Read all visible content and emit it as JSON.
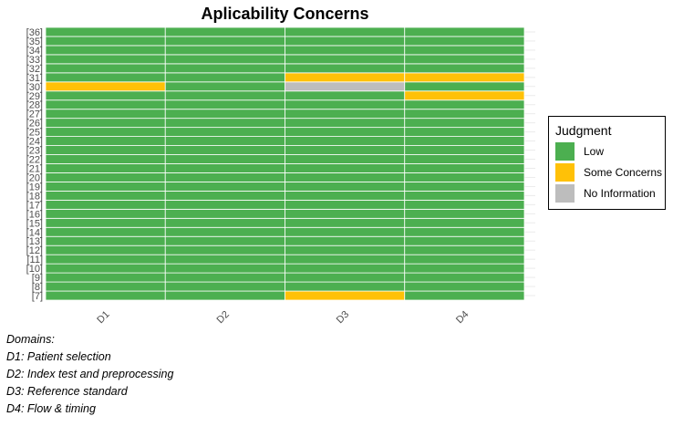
{
  "chart_data": {
    "type": "heatmap",
    "title": "Aplicability Concerns",
    "x_categories": [
      "D1",
      "D2",
      "D3",
      "D4"
    ],
    "y_categories": [
      "[7]",
      "[8]",
      "[9]",
      "[10]",
      "[11]",
      "[12]",
      "[13]",
      "[14]",
      "[15]",
      "[16]",
      "[17]",
      "[18]",
      "[19]",
      "[20]",
      "[21]",
      "[22]",
      "[23]",
      "[24]",
      "[25]",
      "[26]",
      "[27]",
      "[28]",
      "[29]",
      "[30]",
      "[31]",
      "[32]",
      "[33]",
      "[34]",
      "[35]",
      "[36]"
    ],
    "cells": {
      "[7]": [
        "Low",
        "Low",
        "Some Concerns",
        "Low"
      ],
      "[8]": [
        "Low",
        "Low",
        "Low",
        "Low"
      ],
      "[9]": [
        "Low",
        "Low",
        "Low",
        "Low"
      ],
      "[10]": [
        "Low",
        "Low",
        "Low",
        "Low"
      ],
      "[11]": [
        "Low",
        "Low",
        "Low",
        "Low"
      ],
      "[12]": [
        "Low",
        "Low",
        "Low",
        "Low"
      ],
      "[13]": [
        "Low",
        "Low",
        "Low",
        "Low"
      ],
      "[14]": [
        "Low",
        "Low",
        "Low",
        "Low"
      ],
      "[15]": [
        "Low",
        "Low",
        "Low",
        "Low"
      ],
      "[16]": [
        "Low",
        "Low",
        "Low",
        "Low"
      ],
      "[17]": [
        "Low",
        "Low",
        "Low",
        "Low"
      ],
      "[18]": [
        "Low",
        "Low",
        "Low",
        "Low"
      ],
      "[19]": [
        "Low",
        "Low",
        "Low",
        "Low"
      ],
      "[20]": [
        "Low",
        "Low",
        "Low",
        "Low"
      ],
      "[21]": [
        "Low",
        "Low",
        "Low",
        "Low"
      ],
      "[22]": [
        "Low",
        "Low",
        "Low",
        "Low"
      ],
      "[23]": [
        "Low",
        "Low",
        "Low",
        "Low"
      ],
      "[24]": [
        "Low",
        "Low",
        "Low",
        "Low"
      ],
      "[25]": [
        "Low",
        "Low",
        "Low",
        "Low"
      ],
      "[26]": [
        "Low",
        "Low",
        "Low",
        "Low"
      ],
      "[27]": [
        "Low",
        "Low",
        "Low",
        "Low"
      ],
      "[28]": [
        "Low",
        "Low",
        "Low",
        "Low"
      ],
      "[29]": [
        "Low",
        "Low",
        "Low",
        "Some Concerns"
      ],
      "[30]": [
        "Some Concerns",
        "Low",
        "No Information",
        "Low"
      ],
      "[31]": [
        "Low",
        "Low",
        "Some Concerns",
        "Some Concerns"
      ],
      "[32]": [
        "Low",
        "Low",
        "Low",
        "Low"
      ],
      "[33]": [
        "Low",
        "Low",
        "Low",
        "Low"
      ],
      "[34]": [
        "Low",
        "Low",
        "Low",
        "Low"
      ],
      "[35]": [
        "Low",
        "Low",
        "Low",
        "Low"
      ],
      "[36]": [
        "Low",
        "Low",
        "Low",
        "Low"
      ]
    },
    "legend": {
      "title": "Judgment",
      "placement": "right",
      "items": [
        {
          "label": "Low",
          "color": "#4CAF50"
        },
        {
          "label": "Some Concerns",
          "color": "#FFC107"
        },
        {
          "label": "No Information",
          "color": "#BDBDBD"
        }
      ]
    }
  },
  "domains": {
    "heading": "Domains:",
    "lines": [
      "D1: Patient selection",
      "D2: Index test and preprocessing",
      "D3: Reference standard",
      "D4: Flow & timing"
    ]
  }
}
